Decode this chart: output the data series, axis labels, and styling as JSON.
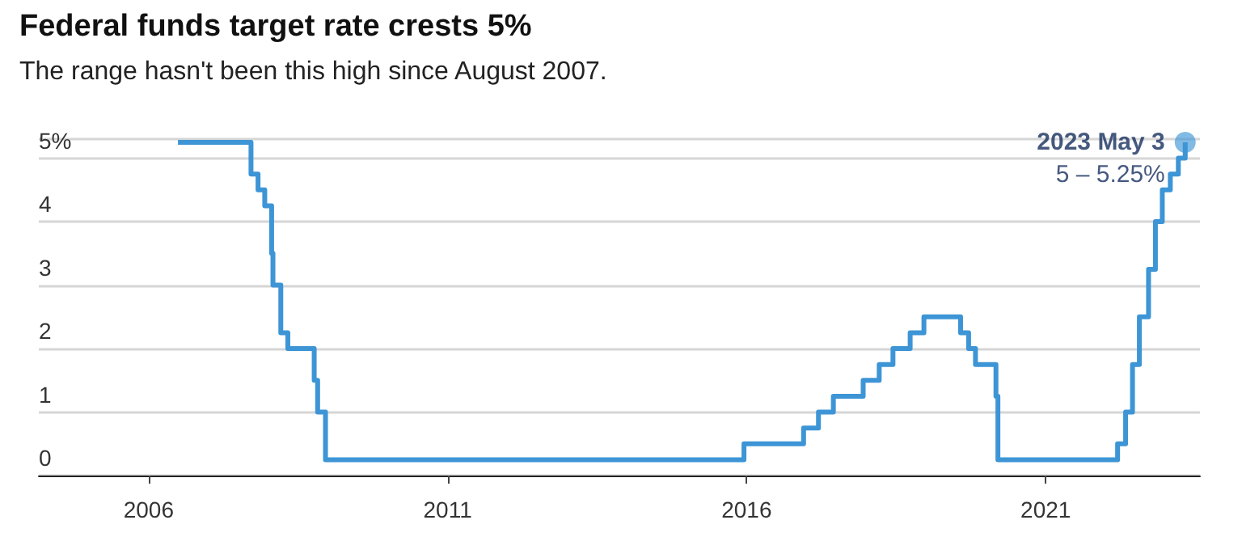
{
  "chart_data": {
    "type": "step",
    "title": "Federal funds target rate crests 5%",
    "subtitle": "The range hasn't been this high since August 2007.",
    "x": [
      "2006-06-29",
      "2007-09-18",
      "2007-10-31",
      "2007-12-11",
      "2008-01-22",
      "2008-01-30",
      "2008-03-18",
      "2008-04-30",
      "2008-10-08",
      "2008-10-29",
      "2008-12-16",
      "2015-12-16",
      "2016-12-14",
      "2017-03-15",
      "2017-06-14",
      "2017-12-13",
      "2018-03-21",
      "2018-06-13",
      "2018-09-26",
      "2018-12-19",
      "2019-07-31",
      "2019-09-18",
      "2019-10-30",
      "2020-03-03",
      "2020-03-15",
      "2022-03-16",
      "2022-05-04",
      "2022-06-15",
      "2022-07-27",
      "2022-09-21",
      "2022-11-02",
      "2022-12-14",
      "2023-02-01",
      "2023-03-22",
      "2023-05-03"
    ],
    "series": [
      {
        "color": "#3d95d6",
        "values": [
          5.25,
          4.75,
          4.5,
          4.25,
          3.5,
          3.0,
          2.25,
          2.0,
          1.5,
          1.0,
          0.25,
          0.5,
          0.75,
          1.0,
          1.25,
          1.5,
          1.75,
          2.0,
          2.25,
          2.5,
          2.25,
          2.0,
          1.75,
          1.25,
          0.25,
          0.5,
          1.0,
          1.75,
          2.5,
          3.25,
          4.0,
          4.5,
          4.75,
          5.0,
          5.25
        ]
      }
    ],
    "xlim": [
      "2004-03-01",
      "2023-08-01"
    ],
    "xticks": [
      "2006",
      "2011",
      "2016",
      "2021"
    ],
    "ylim": [
      0,
      5.3
    ],
    "yticks": [
      0,
      1,
      2,
      3,
      4,
      {
        "value": 5,
        "label": "5%"
      }
    ],
    "grid": "y",
    "marker": "none",
    "line_style": "solid",
    "annotations": [
      {
        "text": "2023 May 3",
        "x": "2023-05-03",
        "y": 5.25
      },
      "5 – 5.25%"
    ]
  }
}
